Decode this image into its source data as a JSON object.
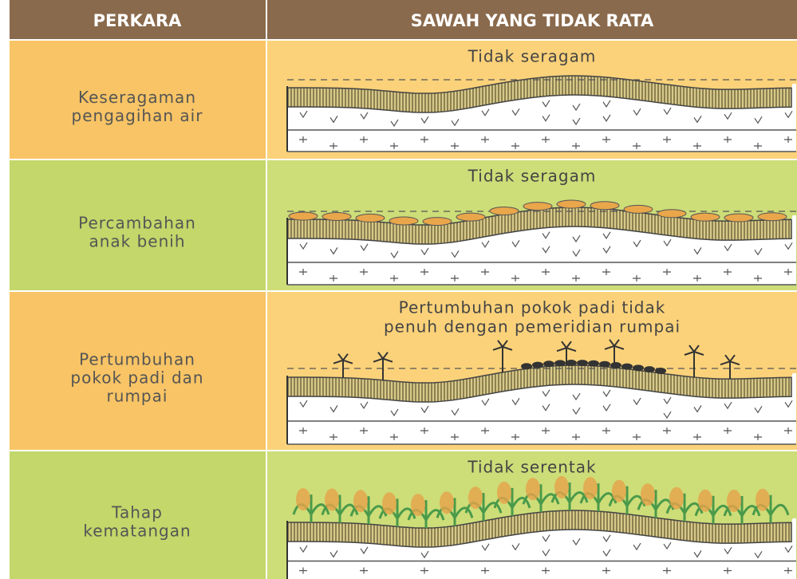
{
  "header": {
    "columns": [
      "PERKARA",
      "SAWAH YANG TIDAK RATA"
    ]
  },
  "rows": [
    {
      "label": [
        "Keseragaman",
        "pengagihan air"
      ],
      "caption": [
        "Tidak seragam"
      ]
    },
    {
      "label": [
        "Percambahan",
        "anak benih"
      ],
      "caption": [
        "Tidak seragam"
      ]
    },
    {
      "label": [
        "Pertumbuhan",
        "pokok padi dan",
        "rumpai"
      ],
      "caption": [
        "Pertumbuhan pokok padi tidak",
        "penuh dengan  pemeridian rumpai"
      ]
    },
    {
      "label": [
        "Tahap",
        "kematangan"
      ],
      "caption": [
        "Tidak serentak"
      ]
    }
  ]
}
